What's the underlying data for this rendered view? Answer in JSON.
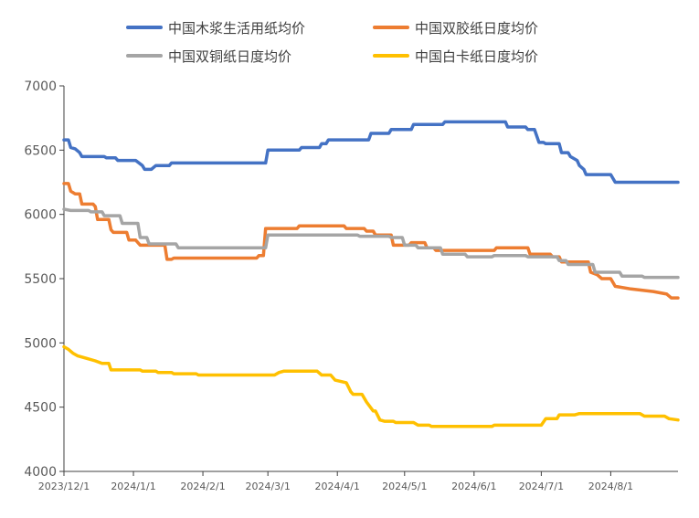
{
  "chart_data": {
    "type": "line",
    "title": "",
    "xlabel": "",
    "ylabel": "",
    "ylim": [
      4000,
      7000
    ],
    "yticks": [
      4000,
      4500,
      5000,
      5500,
      6000,
      6500,
      7000
    ],
    "xticks": [
      "2023/12/1",
      "2024/1/1",
      "2024/2/1",
      "2024/3/1",
      "2024/4/1",
      "2024/5/1",
      "2024/6/1",
      "2024/7/1",
      "2024/8/1"
    ],
    "xlim": [
      "2023/12/1",
      "2024/8/31"
    ],
    "grid": false,
    "legend": "top",
    "series": [
      {
        "name": "中国木浆生活用纸均价",
        "color": "#4472C4",
        "points": [
          [
            "2023/12/1",
            6580
          ],
          [
            "2023/12/3",
            6580
          ],
          [
            "2023/12/4",
            6520
          ],
          [
            "2023/12/6",
            6510
          ],
          [
            "2023/12/8",
            6480
          ],
          [
            "2023/12/9",
            6450
          ],
          [
            "2023/12/19",
            6450
          ],
          [
            "2023/12/20",
            6440
          ],
          [
            "2023/12/24",
            6440
          ],
          [
            "2023/12/25",
            6420
          ],
          [
            "2024/1/2",
            6420
          ],
          [
            "2024/1/5",
            6380
          ],
          [
            "2024/1/6",
            6350
          ],
          [
            "2024/1/9",
            6350
          ],
          [
            "2024/1/11",
            6380
          ],
          [
            "2024/1/17",
            6380
          ],
          [
            "2024/1/18",
            6400
          ],
          [
            "2024/2/29",
            6400
          ],
          [
            "2024/3/1",
            6500
          ],
          [
            "2024/3/15",
            6500
          ],
          [
            "2024/3/16",
            6520
          ],
          [
            "2024/3/24",
            6520
          ],
          [
            "2024/3/25",
            6550
          ],
          [
            "2024/3/27",
            6550
          ],
          [
            "2024/3/28",
            6580
          ],
          [
            "2024/4/15",
            6580
          ],
          [
            "2024/4/16",
            6630
          ],
          [
            "2024/4/24",
            6630
          ],
          [
            "2024/4/25",
            6660
          ],
          [
            "2024/5/4",
            6660
          ],
          [
            "2024/5/5",
            6700
          ],
          [
            "2024/5/18",
            6700
          ],
          [
            "2024/5/19",
            6720
          ],
          [
            "2024/6/15",
            6720
          ],
          [
            "2024/6/16",
            6680
          ],
          [
            "2024/6/24",
            6680
          ],
          [
            "2024/6/25",
            6660
          ],
          [
            "2024/6/28",
            6660
          ],
          [
            "2024/6/30",
            6560
          ],
          [
            "2024/7/2",
            6560
          ],
          [
            "2024/7/3",
            6550
          ],
          [
            "2024/7/9",
            6550
          ],
          [
            "2024/7/10",
            6480
          ],
          [
            "2024/7/13",
            6480
          ],
          [
            "2024/7/14",
            6450
          ],
          [
            "2024/7/17",
            6420
          ],
          [
            "2024/7/18",
            6380
          ],
          [
            "2024/7/20",
            6350
          ],
          [
            "2024/7/21",
            6310
          ],
          [
            "2024/8/1",
            6310
          ],
          [
            "2024/8/3",
            6250
          ],
          [
            "2024/8/31",
            6250
          ]
        ]
      },
      {
        "name": "中国双胶纸日度均价",
        "color": "#ED7D31",
        "points": [
          [
            "2023/12/1",
            6240
          ],
          [
            "2023/12/3",
            6240
          ],
          [
            "2023/12/4",
            6180
          ],
          [
            "2023/12/6",
            6160
          ],
          [
            "2023/12/8",
            6160
          ],
          [
            "2023/12/9",
            6080
          ],
          [
            "2023/12/14",
            6080
          ],
          [
            "2023/12/15",
            6060
          ],
          [
            "2023/12/16",
            5960
          ],
          [
            "2023/12/21",
            5960
          ],
          [
            "2023/12/22",
            5880
          ],
          [
            "2023/12/23",
            5860
          ],
          [
            "2023/12/29",
            5860
          ],
          [
            "2023/12/30",
            5800
          ],
          [
            "2024/1/2",
            5800
          ],
          [
            "2024/1/4",
            5760
          ],
          [
            "2024/1/15",
            5760
          ],
          [
            "2024/1/16",
            5650
          ],
          [
            "2024/1/18",
            5650
          ],
          [
            "2024/1/19",
            5660
          ],
          [
            "2024/2/25",
            5660
          ],
          [
            "2024/2/26",
            5680
          ],
          [
            "2024/2/28",
            5680
          ],
          [
            "2024/2/29",
            5890
          ],
          [
            "2024/3/14",
            5890
          ],
          [
            "2024/3/15",
            5910
          ],
          [
            "2024/4/4",
            5910
          ],
          [
            "2024/4/5",
            5890
          ],
          [
            "2024/4/13",
            5890
          ],
          [
            "2024/4/14",
            5870
          ],
          [
            "2024/4/17",
            5870
          ],
          [
            "2024/4/18",
            5840
          ],
          [
            "2024/4/25",
            5840
          ],
          [
            "2024/4/26",
            5760
          ],
          [
            "2024/5/3",
            5760
          ],
          [
            "2024/5/4",
            5780
          ],
          [
            "2024/5/10",
            5780
          ],
          [
            "2024/5/11",
            5740
          ],
          [
            "2024/5/14",
            5740
          ],
          [
            "2024/5/15",
            5720
          ],
          [
            "2024/6/10",
            5720
          ],
          [
            "2024/6/11",
            5740
          ],
          [
            "2024/6/25",
            5740
          ],
          [
            "2024/6/26",
            5690
          ],
          [
            "2024/7/5",
            5690
          ],
          [
            "2024/7/6",
            5670
          ],
          [
            "2024/7/9",
            5670
          ],
          [
            "2024/7/10",
            5630
          ],
          [
            "2024/7/22",
            5630
          ],
          [
            "2024/7/23",
            5550
          ],
          [
            "2024/7/26",
            5530
          ],
          [
            "2024/7/28",
            5500
          ],
          [
            "2024/8/1",
            5500
          ],
          [
            "2024/8/3",
            5440
          ],
          [
            "2024/8/10",
            5420
          ],
          [
            "2024/8/20",
            5400
          ],
          [
            "2024/8/26",
            5380
          ],
          [
            "2024/8/28",
            5350
          ],
          [
            "2024/8/31",
            5350
          ]
        ]
      },
      {
        "name": "中国双铜纸日度均价",
        "color": "#A5A5A5",
        "points": [
          [
            "2023/12/1",
            6040
          ],
          [
            "2023/12/4",
            6030
          ],
          [
            "2023/12/12",
            6030
          ],
          [
            "2023/12/13",
            6020
          ],
          [
            "2023/12/18",
            6020
          ],
          [
            "2023/12/19",
            5990
          ],
          [
            "2023/12/26",
            5990
          ],
          [
            "2023/12/27",
            5930
          ],
          [
            "2024/1/3",
            5930
          ],
          [
            "2024/1/4",
            5820
          ],
          [
            "2024/1/7",
            5820
          ],
          [
            "2024/1/8",
            5770
          ],
          [
            "2024/1/20",
            5770
          ],
          [
            "2024/1/21",
            5740
          ],
          [
            "2024/2/29",
            5740
          ],
          [
            "2024/3/1",
            5840
          ],
          [
            "2024/4/10",
            5840
          ],
          [
            "2024/4/11",
            5830
          ],
          [
            "2024/4/24",
            5830
          ],
          [
            "2024/4/25",
            5820
          ],
          [
            "2024/4/30",
            5820
          ],
          [
            "2024/5/1",
            5760
          ],
          [
            "2024/5/6",
            5760
          ],
          [
            "2024/5/7",
            5740
          ],
          [
            "2024/5/17",
            5740
          ],
          [
            "2024/5/18",
            5690
          ],
          [
            "2024/5/28",
            5690
          ],
          [
            "2024/5/29",
            5670
          ],
          [
            "2024/6/9",
            5670
          ],
          [
            "2024/6/10",
            5680
          ],
          [
            "2024/6/24",
            5680
          ],
          [
            "2024/6/25",
            5670
          ],
          [
            "2024/7/8",
            5670
          ],
          [
            "2024/7/9",
            5640
          ],
          [
            "2024/7/12",
            5640
          ],
          [
            "2024/7/13",
            5610
          ],
          [
            "2024/7/24",
            5610
          ],
          [
            "2024/7/25",
            5550
          ],
          [
            "2024/8/5",
            5550
          ],
          [
            "2024/8/6",
            5520
          ],
          [
            "2024/8/15",
            5520
          ],
          [
            "2024/8/16",
            5510
          ],
          [
            "2024/8/31",
            5510
          ]
        ]
      },
      {
        "name": "中国白卡纸日度均价",
        "color": "#FFC000",
        "points": [
          [
            "2023/12/1",
            4970
          ],
          [
            "2023/12/3",
            4950
          ],
          [
            "2023/12/5",
            4920
          ],
          [
            "2023/12/7",
            4900
          ],
          [
            "2023/12/11",
            4880
          ],
          [
            "2023/12/15",
            4860
          ],
          [
            "2023/12/18",
            4840
          ],
          [
            "2023/12/21",
            4840
          ],
          [
            "2023/12/22",
            4790
          ],
          [
            "2024/1/4",
            4790
          ],
          [
            "2024/1/5",
            4780
          ],
          [
            "2024/1/11",
            4780
          ],
          [
            "2024/1/12",
            4770
          ],
          [
            "2024/1/18",
            4770
          ],
          [
            "2024/1/19",
            4760
          ],
          [
            "2024/1/29",
            4760
          ],
          [
            "2024/1/30",
            4750
          ],
          [
            "2024/3/4",
            4750
          ],
          [
            "2024/3/6",
            4770
          ],
          [
            "2024/3/8",
            4780
          ],
          [
            "2024/3/23",
            4780
          ],
          [
            "2024/3/25",
            4750
          ],
          [
            "2024/3/29",
            4750
          ],
          [
            "2024/3/31",
            4710
          ],
          [
            "2024/4/5",
            4690
          ],
          [
            "2024/4/7",
            4620
          ],
          [
            "2024/4/8",
            4600
          ],
          [
            "2024/4/12",
            4600
          ],
          [
            "2024/4/14",
            4540
          ],
          [
            "2024/4/17",
            4470
          ],
          [
            "2024/4/18",
            4470
          ],
          [
            "2024/4/20",
            4400
          ],
          [
            "2024/4/22",
            4390
          ],
          [
            "2024/4/26",
            4390
          ],
          [
            "2024/4/27",
            4380
          ],
          [
            "2024/5/5",
            4380
          ],
          [
            "2024/5/7",
            4360
          ],
          [
            "2024/5/12",
            4360
          ],
          [
            "2024/5/13",
            4350
          ],
          [
            "2024/6/9",
            4350
          ],
          [
            "2024/6/10",
            4360
          ],
          [
            "2024/7/1",
            4360
          ],
          [
            "2024/7/3",
            4410
          ],
          [
            "2024/7/8",
            4410
          ],
          [
            "2024/7/9",
            4440
          ],
          [
            "2024/7/16",
            4440
          ],
          [
            "2024/7/18",
            4450
          ],
          [
            "2024/8/14",
            4450
          ],
          [
            "2024/8/16",
            4430
          ],
          [
            "2024/8/25",
            4430
          ],
          [
            "2024/8/27",
            4410
          ],
          [
            "2024/8/31",
            4400
          ]
        ]
      }
    ]
  }
}
